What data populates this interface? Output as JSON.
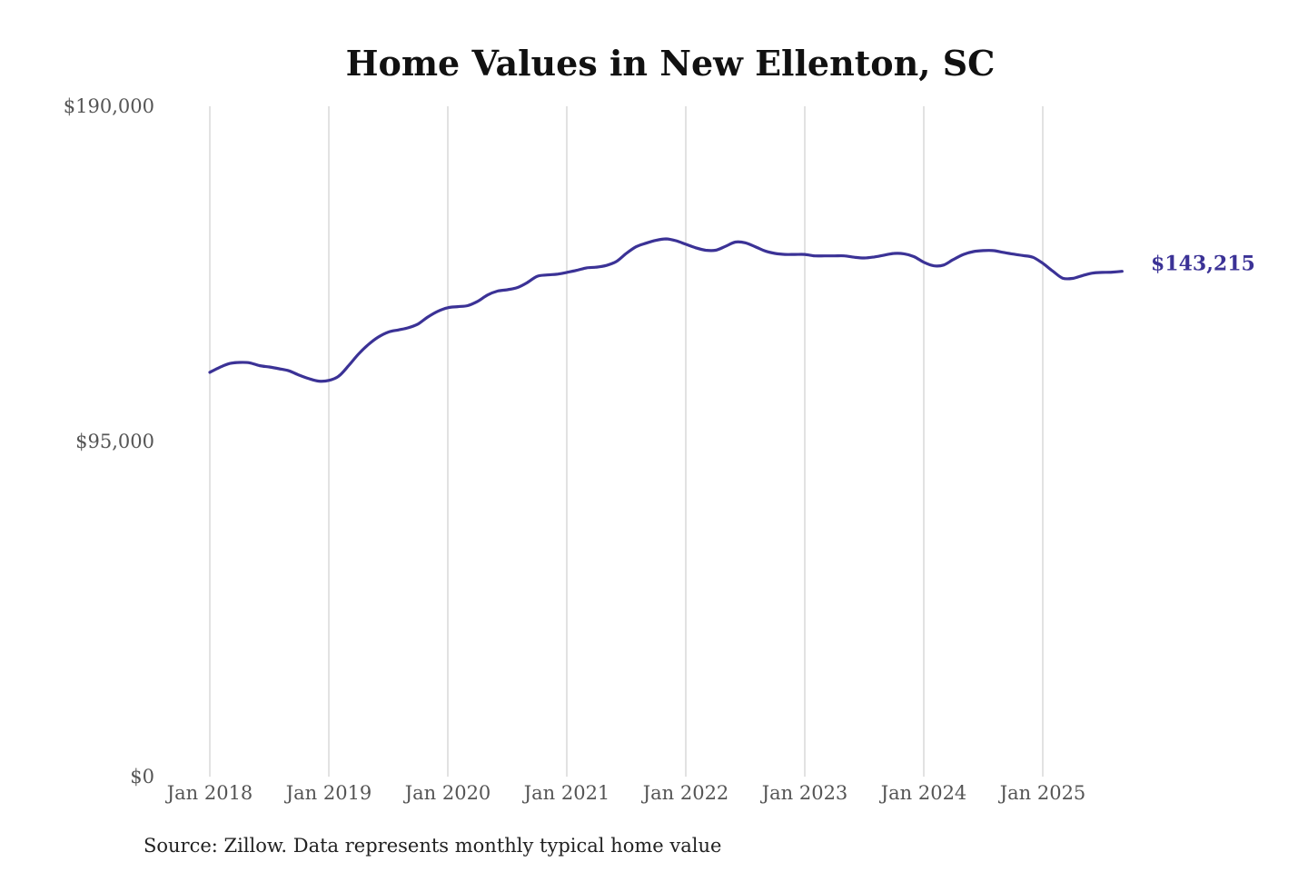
{
  "chart_data": {
    "type": "line",
    "title": "Home Values in New Ellenton, SC",
    "xlabel": "",
    "ylabel": "",
    "ylim": [
      0,
      190000
    ],
    "y_ticks": [
      "$0",
      "$95,000",
      "$190,000"
    ],
    "y_tick_values": [
      0,
      95000,
      190000
    ],
    "x_ticks": [
      "Jan 2018",
      "Jan 2019",
      "Jan 2020",
      "Jan 2021",
      "Jan 2022",
      "Jan 2023",
      "Jan 2024",
      "Jan 2025"
    ],
    "grid": "vertical",
    "start": "Jan 2018",
    "frequency": "monthly",
    "series": [
      {
        "name": "Typical home value",
        "color": "#3b3296",
        "values": [
          114600,
          116000,
          117100,
          117400,
          117300,
          116500,
          116100,
          115600,
          115000,
          113800,
          112800,
          112100,
          112300,
          113500,
          116500,
          119800,
          122500,
          124600,
          126000,
          126600,
          127200,
          128300,
          130300,
          131900,
          132900,
          133200,
          133500,
          134700,
          136500,
          137600,
          138000,
          138600,
          140000,
          141800,
          142200,
          142400,
          142900,
          143500,
          144200,
          144400,
          144900,
          146000,
          148300,
          150200,
          151200,
          152000,
          152400,
          151900,
          150900,
          149900,
          149200,
          149200,
          150300,
          151500,
          151300,
          150200,
          149000,
          148300,
          148000,
          148000,
          148000,
          147600,
          147600,
          147600,
          147600,
          147200,
          147000,
          147300,
          147800,
          148300,
          148200,
          147400,
          145800,
          144800,
          145000,
          146600,
          148000,
          148800,
          149100,
          149100,
          148600,
          148100,
          147700,
          147200,
          145500,
          143300,
          141300,
          141200,
          142000,
          142700,
          142900,
          143000,
          143215
        ]
      }
    ],
    "end_label": "$143,215",
    "source": "Source: Zillow. Data represents monthly typical home value"
  }
}
